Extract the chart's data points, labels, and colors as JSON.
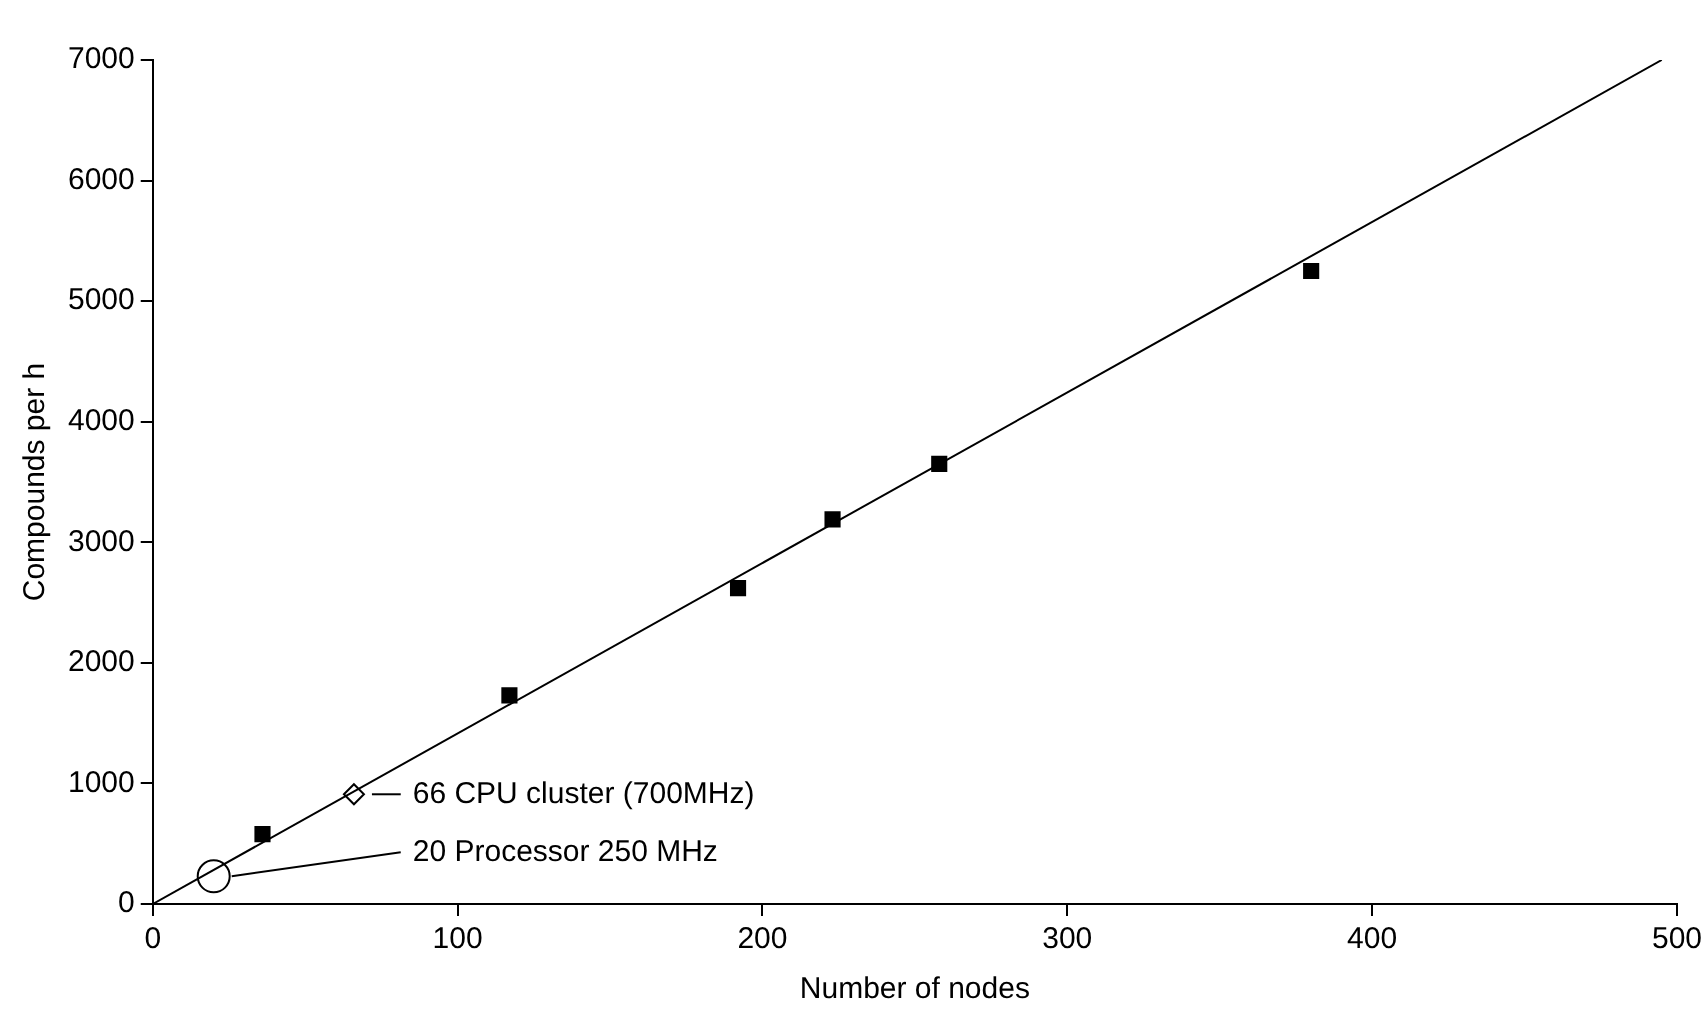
{
  "chart_data": {
    "type": "scatter",
    "xlabel": "Number of nodes",
    "ylabel": "Compounds per h",
    "xlim": [
      0,
      500
    ],
    "xticks": [
      0,
      100,
      200,
      300,
      400,
      500
    ],
    "ylim": [
      0,
      7000
    ],
    "yticks": [
      0,
      1000,
      2000,
      3000,
      4000,
      5000,
      6000,
      7000
    ],
    "grid": false,
    "legend": false,
    "series": [
      {
        "type": "line",
        "color": "#000000",
        "x": [
          0,
          495
        ],
        "values": [
          0,
          7000
        ],
        "marker": "none"
      },
      {
        "color": "#000000",
        "x": [
          36,
          117,
          192,
          223,
          258,
          380
        ],
        "values": [
          580,
          1730,
          2620,
          3190,
          3650,
          5250
        ],
        "marker": "square"
      },
      {
        "color": "#000000",
        "x": [
          66
        ],
        "values": [
          910
        ],
        "marker": "diamond"
      },
      {
        "color": "#000000",
        "x": [
          20
        ],
        "values": [
          230
        ],
        "marker": "circle"
      }
    ],
    "annotations": [
      {
        "text": "66 CPU cluster (700MHz)",
        "x": 66,
        "y": 910
      },
      {
        "text": "20 Processor 250 MHz",
        "x": 20,
        "y": 230
      }
    ]
  }
}
